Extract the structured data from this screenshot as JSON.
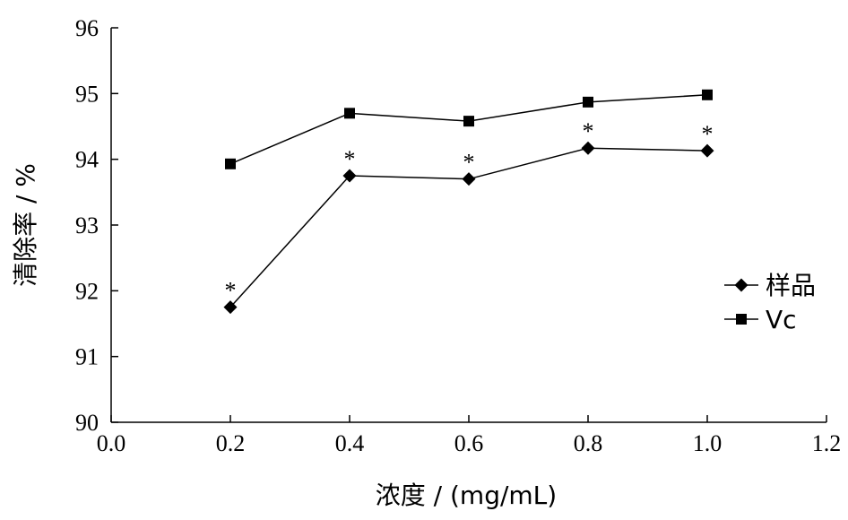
{
  "chart_data": {
    "type": "line",
    "xlabel": "浓度 / (mg/mL)",
    "ylabel": "清除率 / %",
    "xlim": [
      0.0,
      1.2
    ],
    "ylim": [
      90,
      96
    ],
    "x_ticks": [
      "0.0",
      "0.2",
      "0.4",
      "0.6",
      "0.8",
      "1.0",
      "1.2"
    ],
    "y_ticks": [
      "90",
      "91",
      "92",
      "93",
      "94",
      "95",
      "96"
    ],
    "grid": false,
    "legend_position": "right",
    "series": [
      {
        "name": "样品",
        "marker": "diamond",
        "color": "#000000",
        "x": [
          0.2,
          0.4,
          0.6,
          0.8,
          1.0
        ],
        "y": [
          91.75,
          93.75,
          93.7,
          94.17,
          94.13
        ],
        "annotations": [
          "*",
          "*",
          "*",
          "*",
          "*"
        ]
      },
      {
        "name": "Vc",
        "marker": "square",
        "color": "#000000",
        "x": [
          0.2,
          0.4,
          0.6,
          0.8,
          1.0
        ],
        "y": [
          93.93,
          94.7,
          94.58,
          94.87,
          94.98
        ]
      }
    ]
  }
}
